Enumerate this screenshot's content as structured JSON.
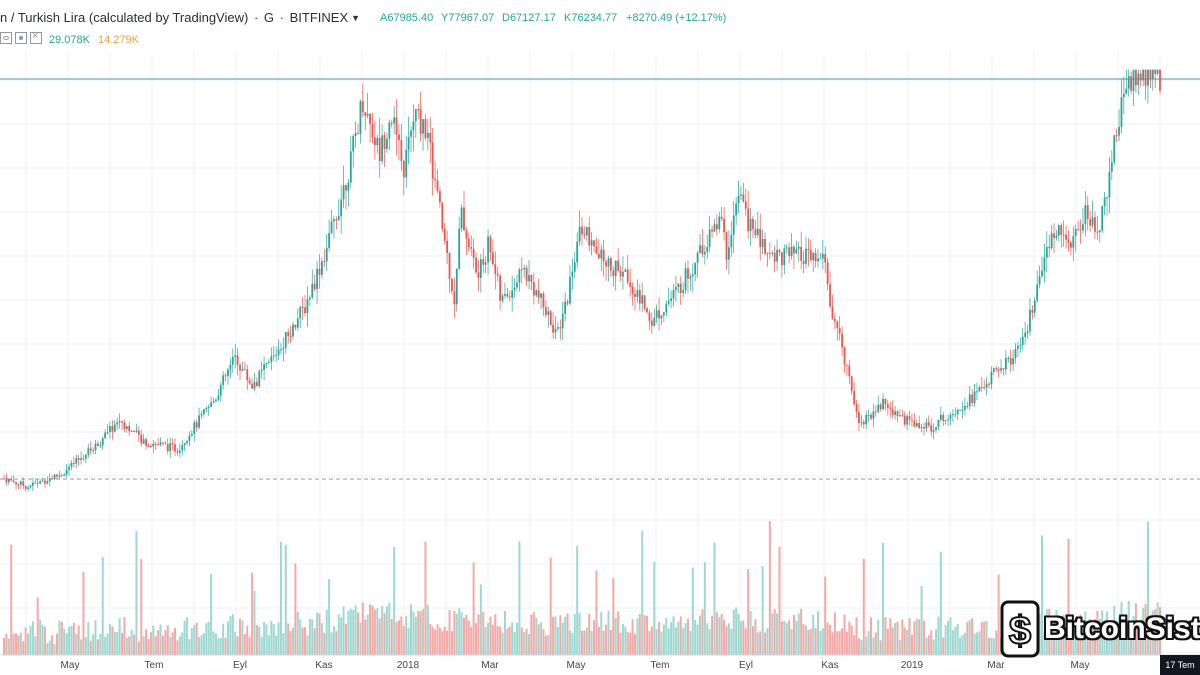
{
  "header": {
    "symbol": "n / Turkish Lira (calculated by TradingView)",
    "separator": "·",
    "interval": "G",
    "exchange": "BITFINEX",
    "dropdown_icon": "caret-down-icon",
    "ohlc": {
      "open": "A67985.40",
      "high": "Y77967.07",
      "low": "D67127.17",
      "close": "K76234.77",
      "change": "+8270.49 (+12.17%)"
    },
    "volume": {
      "icons": [
        "eye-icon",
        "gear-icon",
        "close-icon"
      ],
      "value1": "29.078K",
      "value2": "14.279K"
    }
  },
  "colors": {
    "up": "#26a69a",
    "down": "#ef5350",
    "vol_up": "#9fd8d0",
    "vol_down": "#f4a9a7",
    "grid": "#eef0f3",
    "price_line": "#8fb6c9",
    "dashed_line": "#9598a1",
    "vol_text2": "#f0a04b"
  },
  "chart_data": {
    "type": "candlestick",
    "time_labels": [
      "May",
      "Tem",
      "Eyl",
      "Kas",
      "2018",
      "Mar",
      "May",
      "Tem",
      "Eyl",
      "Kas",
      "2019",
      "Mar",
      "May"
    ],
    "price_path": [
      [
        0,
        0.04
      ],
      [
        0.02,
        0.02
      ],
      [
        0.05,
        0.05
      ],
      [
        0.08,
        0.12
      ],
      [
        0.1,
        0.18
      ],
      [
        0.12,
        0.13
      ],
      [
        0.15,
        0.11
      ],
      [
        0.18,
        0.22
      ],
      [
        0.2,
        0.33
      ],
      [
        0.215,
        0.26
      ],
      [
        0.23,
        0.32
      ],
      [
        0.26,
        0.45
      ],
      [
        0.28,
        0.6
      ],
      [
        0.3,
        0.8
      ],
      [
        0.31,
        0.95
      ],
      [
        0.325,
        0.82
      ],
      [
        0.335,
        0.92
      ],
      [
        0.345,
        0.77
      ],
      [
        0.355,
        0.91
      ],
      [
        0.365,
        0.88
      ],
      [
        0.38,
        0.63
      ],
      [
        0.39,
        0.46
      ],
      [
        0.395,
        0.68
      ],
      [
        0.41,
        0.52
      ],
      [
        0.42,
        0.61
      ],
      [
        0.43,
        0.46
      ],
      [
        0.45,
        0.54
      ],
      [
        0.48,
        0.38
      ],
      [
        0.5,
        0.65
      ],
      [
        0.51,
        0.58
      ],
      [
        0.54,
        0.52
      ],
      [
        0.56,
        0.42
      ],
      [
        0.58,
        0.48
      ],
      [
        0.6,
        0.57
      ],
      [
        0.62,
        0.66
      ],
      [
        0.625,
        0.58
      ],
      [
        0.635,
        0.72
      ],
      [
        0.645,
        0.65
      ],
      [
        0.66,
        0.58
      ],
      [
        0.69,
        0.57
      ],
      [
        0.71,
        0.56
      ],
      [
        0.715,
        0.45
      ],
      [
        0.73,
        0.3
      ],
      [
        0.74,
        0.17
      ],
      [
        0.76,
        0.22
      ],
      [
        0.78,
        0.18
      ],
      [
        0.8,
        0.16
      ],
      [
        0.82,
        0.2
      ],
      [
        0.84,
        0.24
      ],
      [
        0.86,
        0.3
      ],
      [
        0.88,
        0.35
      ],
      [
        0.9,
        0.55
      ],
      [
        0.91,
        0.65
      ],
      [
        0.925,
        0.6
      ],
      [
        0.935,
        0.68
      ],
      [
        0.945,
        0.62
      ],
      [
        0.955,
        0.75
      ],
      [
        0.965,
        0.9
      ],
      [
        0.97,
        1.0
      ]
    ]
  },
  "date_badge": "17 Tem",
  "watermark": {
    "text": "BitcoinSist",
    "icon": "bitcoin-logo-icon"
  }
}
